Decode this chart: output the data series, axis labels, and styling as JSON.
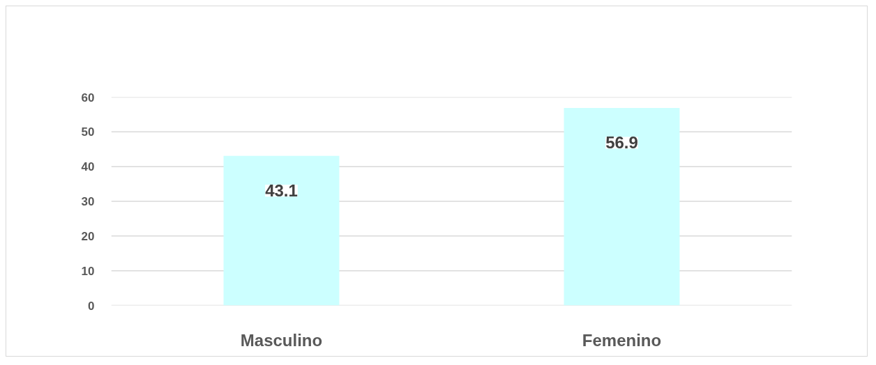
{
  "chart_data": {
    "type": "bar",
    "categories": [
      "Masculino",
      "Femenino"
    ],
    "values": [
      43.1,
      56.9
    ],
    "color": "#ccffff",
    "ylim": [
      0,
      60
    ],
    "yticks": [
      0,
      10,
      20,
      30,
      40,
      50,
      60
    ],
    "grid": "y",
    "data_labels": true
  }
}
